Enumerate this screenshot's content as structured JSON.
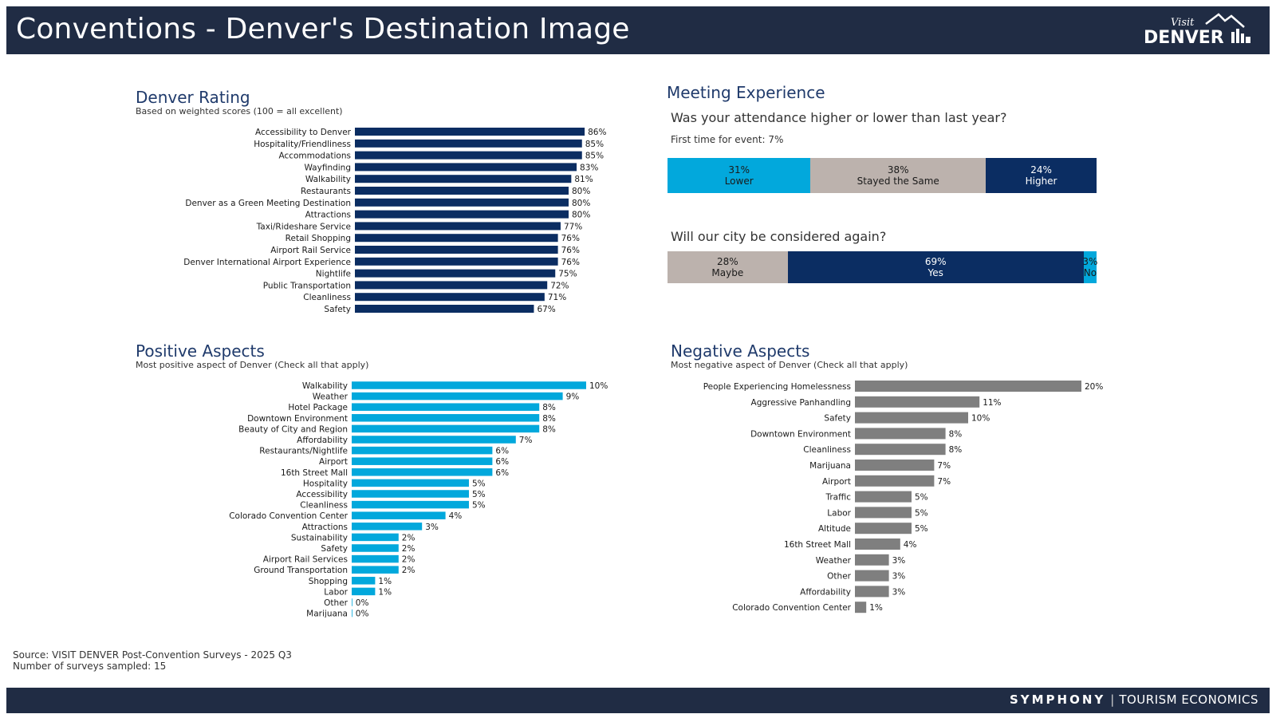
{
  "header": {
    "title": "Conventions - Denver's Destination Image",
    "logo_small": "Visit",
    "logo_big": "DENVER"
  },
  "footer": {
    "brand_left": "SYMPHONY",
    "brand_right": "TOURISM ECONOMICS"
  },
  "colors": {
    "navy": "#0b2d62",
    "cyan": "#02a8dc",
    "gray": "#7f7f7f",
    "taupe": "#bcb2ad",
    "header_bg": "#202c44",
    "title_blue": "#1f3a6b"
  },
  "rating": {
    "title": "Denver Rating",
    "subtitle": "Based on weighted scores (100 = all excellent)"
  },
  "positive": {
    "title": "Positive Aspects",
    "subtitle": "Most positive aspect of Denver (Check all that apply)"
  },
  "negative": {
    "title": "Negative Aspects",
    "subtitle": "Most negative aspect of Denver (Check all that apply)"
  },
  "meeting": {
    "title": "Meeting Experience",
    "q1": "Was your attendance higher or lower than last year?",
    "first_time": "First time for event: 7%",
    "q2": "Will our city be considered again?"
  },
  "source": {
    "line1": "Source: VISIT DENVER Post-Convention Surveys - 2025 Q3",
    "line2": "Number of surveys sampled: 15"
  },
  "chart_data": [
    {
      "id": "rating",
      "type": "bar",
      "orientation": "horizontal",
      "color": "#0b2d62",
      "categories": [
        "Accessibility to Denver",
        "Hospitality/Friendliness",
        "Accommodations",
        "Wayfinding",
        "Walkability",
        "Restaurants",
        "Denver as a Green Meeting Destination",
        "Attractions",
        "Taxi/Rideshare Service",
        "Retail Shopping",
        "Airport Rail Service",
        "Denver International Airport Experience",
        "Nightlife",
        "Public Transportation",
        "Cleanliness",
        "Safety"
      ],
      "values": [
        86,
        85,
        85,
        83,
        81,
        80,
        80,
        80,
        77,
        76,
        76,
        76,
        75,
        72,
        71,
        67
      ],
      "labels": [
        "86%",
        "85%",
        "85%",
        "83%",
        "81%",
        "80%",
        "80%",
        "80%",
        "77%",
        "76%",
        "76%",
        "76%",
        "75%",
        "72%",
        "71%",
        "67%"
      ]
    },
    {
      "id": "positive",
      "type": "bar",
      "orientation": "horizontal",
      "color": "#02a8dc",
      "categories": [
        "Walkability",
        "Weather",
        "Hotel Package",
        "Downtown Environment",
        "Beauty of City and Region",
        "Affordability",
        "Restaurants/Nightlife",
        "Airport",
        "16th Street Mall",
        "Hospitality",
        "Accessibility",
        "Cleanliness",
        "Colorado Convention Center",
        "Attractions",
        "Sustainability",
        "Safety",
        "Airport Rail Services",
        "Ground Transportation",
        "Shopping",
        "Labor",
        "Other",
        "Marijuana"
      ],
      "values": [
        10,
        9,
        8,
        8,
        8,
        7,
        6,
        6,
        6,
        5,
        5,
        5,
        4,
        3,
        2,
        2,
        2,
        2,
        1,
        1,
        0,
        0
      ],
      "labels": [
        "10%",
        "9%",
        "8%",
        "8%",
        "8%",
        "7%",
        "6%",
        "6%",
        "6%",
        "5%",
        "5%",
        "5%",
        "4%",
        "3%",
        "2%",
        "2%",
        "2%",
        "2%",
        "1%",
        "1%",
        "0%",
        "0%"
      ]
    },
    {
      "id": "negative",
      "type": "bar",
      "orientation": "horizontal",
      "color": "#7f7f7f",
      "categories": [
        "People Experiencing Homelessness",
        "Aggressive Panhandling",
        "Safety",
        "Downtown Environment",
        "Cleanliness",
        "Marijuana",
        "Airport",
        "Traffic",
        "Labor",
        "Altitude",
        "16th Street Mall",
        "Weather",
        "Other",
        "Affordability",
        "Colorado Convention Center"
      ],
      "values": [
        20,
        11,
        10,
        8,
        8,
        7,
        7,
        5,
        5,
        5,
        4,
        3,
        3,
        3,
        1
      ],
      "labels": [
        "20%",
        "11%",
        "10%",
        "8%",
        "8%",
        "7%",
        "7%",
        "5%",
        "5%",
        "5%",
        "4%",
        "3%",
        "3%",
        "3%",
        "1%"
      ]
    },
    {
      "id": "attendance",
      "type": "bar",
      "stacked": true,
      "segments": [
        {
          "name": "Lower",
          "value": 31,
          "label": "31%",
          "color": "#02a8dc",
          "text_color": "#1a1a1a"
        },
        {
          "name": "Stayed the Same",
          "value": 38,
          "label": "38%",
          "color": "#bcb2ad",
          "text_color": "#1a1a1a"
        },
        {
          "name": "Higher",
          "value": 24,
          "label": "24%",
          "color": "#0b2d62",
          "text_color": "#ffffff"
        }
      ]
    },
    {
      "id": "consider",
      "type": "bar",
      "stacked": true,
      "segments": [
        {
          "name": "Maybe",
          "value": 28,
          "label": "28%",
          "color": "#bcb2ad",
          "text_color": "#1a1a1a"
        },
        {
          "name": "Yes",
          "value": 69,
          "label": "69%",
          "color": "#0b2d62",
          "text_color": "#ffffff"
        },
        {
          "name": "No",
          "value": 3,
          "label": "3%",
          "color": "#02a8dc",
          "text_color": "#1a1a1a"
        }
      ]
    }
  ]
}
